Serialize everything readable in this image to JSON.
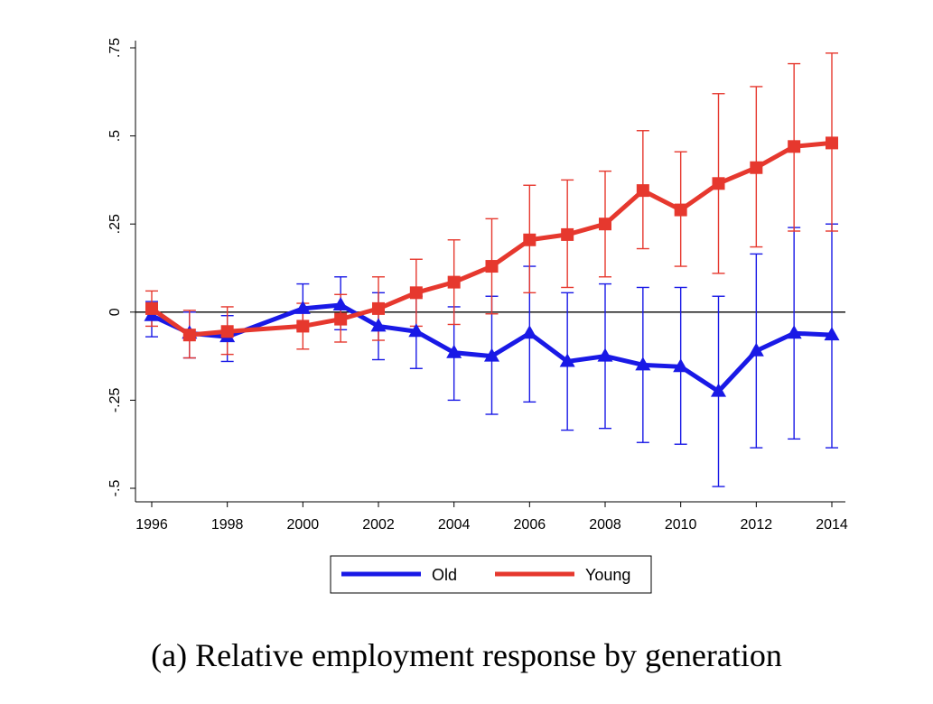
{
  "caption": "(a) Relative employment response by generation",
  "chart_data": {
    "type": "line",
    "x": [
      1996,
      1997,
      1998,
      2000,
      2001,
      2002,
      2003,
      2004,
      2005,
      2006,
      2007,
      2008,
      2009,
      2010,
      2011,
      2012,
      2013,
      2014
    ],
    "xticks": [
      1996,
      1998,
      2000,
      2002,
      2004,
      2006,
      2008,
      2010,
      2012,
      2014
    ],
    "xtick_labels": [
      "1996",
      "1998",
      "2000",
      "2002",
      "2004",
      "2006",
      "2008",
      "2010",
      "2012",
      "2014"
    ],
    "yticks": [
      -0.5,
      -0.25,
      0,
      0.25,
      0.5,
      0.75
    ],
    "ytick_labels": [
      "-.5",
      "-.25",
      "0",
      ".25",
      ".5",
      ".75"
    ],
    "xlim": [
      1996,
      2014
    ],
    "ylim": [
      -0.5,
      0.75
    ],
    "reference_line_y": 0,
    "legend_position": "bottom",
    "series": [
      {
        "name": "Old",
        "color": "#1919e6",
        "marker": "triangle",
        "values": [
          -0.01,
          -0.06,
          -0.07,
          0.01,
          0.02,
          -0.04,
          -0.055,
          -0.115,
          -0.125,
          -0.06,
          -0.14,
          -0.125,
          -0.15,
          -0.155,
          -0.225,
          -0.11,
          -0.06,
          -0.065
        ],
        "ci_low": [
          -0.07,
          -0.13,
          -0.14,
          -0.05,
          -0.05,
          -0.135,
          -0.16,
          -0.25,
          -0.29,
          -0.255,
          -0.335,
          -0.33,
          -0.37,
          -0.375,
          -0.495,
          -0.385,
          -0.36,
          -0.385
        ],
        "ci_high": [
          0.03,
          0.0,
          -0.01,
          0.08,
          0.1,
          0.055,
          0.045,
          0.015,
          0.045,
          0.13,
          0.055,
          0.08,
          0.07,
          0.07,
          0.045,
          0.165,
          0.24,
          0.25
        ]
      },
      {
        "name": "Young",
        "color": "#e6382e",
        "marker": "square",
        "values": [
          0.01,
          -0.065,
          -0.055,
          -0.04,
          -0.02,
          0.01,
          0.055,
          0.085,
          0.13,
          0.205,
          0.22,
          0.25,
          0.345,
          0.29,
          0.365,
          0.41,
          0.47,
          0.48
        ],
        "ci_low": [
          -0.04,
          -0.13,
          -0.12,
          -0.105,
          -0.085,
          -0.08,
          -0.04,
          -0.035,
          -0.005,
          0.055,
          0.07,
          0.1,
          0.18,
          0.13,
          0.11,
          0.185,
          0.23,
          0.23
        ],
        "ci_high": [
          0.06,
          0.005,
          0.015,
          0.025,
          0.05,
          0.1,
          0.15,
          0.205,
          0.265,
          0.36,
          0.375,
          0.4,
          0.515,
          0.455,
          0.62,
          0.64,
          0.705,
          0.735
        ]
      }
    ]
  }
}
